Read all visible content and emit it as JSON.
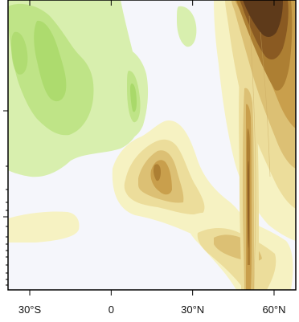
{
  "chart_data": {
    "type": "heatmap",
    "subtype": "filled-contour",
    "title": "",
    "xlabel": "",
    "ylabel": "",
    "x_ticks": [
      {
        "value": -30,
        "label": "30°S"
      },
      {
        "value": 0,
        "label": "0"
      },
      {
        "value": 30,
        "label": "30°N"
      },
      {
        "value": 60,
        "label": "60°N"
      }
    ],
    "xlim": [
      -38,
      68
    ],
    "y_scale": "log",
    "y_tick_labels_shown": false,
    "legend": "none",
    "grid": false,
    "palette": {
      "negative": [
        "#eef8d2",
        "#d8efae",
        "#bfe487",
        "#a9d96a"
      ],
      "neutral": "#f5f6fb",
      "positive": [
        "#f6f2c2",
        "#ecdd9b",
        "#dcc074",
        "#c99f4c",
        "#ad7f33",
        "#8a5a22",
        "#5e3a1a"
      ]
    },
    "color_features": [
      {
        "name": "green region, southern hemisphere upper levels",
        "lat_range": [
          -38,
          -5
        ],
        "sign": "negative",
        "max_level": 3
      },
      {
        "name": "green band near 10°N aloft",
        "lat_range": [
          5,
          15
        ],
        "sign": "negative",
        "max_level": 3
      },
      {
        "name": "green patch near 36°N aloft",
        "lat_range": [
          32,
          40
        ],
        "sign": "negative",
        "max_level": 1
      },
      {
        "name": "brown maximum 45–65°N upper levels",
        "lat_range": [
          45,
          65
        ],
        "sign": "positive",
        "max_level": 7
      },
      {
        "name": "brown maximum near 20°N mid levels",
        "lat_range": [
          10,
          30
        ],
        "sign": "positive",
        "max_level": 5
      },
      {
        "name": "brown streak near 55°N to the lower levels",
        "lat_range": [
          45,
          62
        ],
        "sign": "positive",
        "max_level": 6
      },
      {
        "name": "pale yellow band 35°S–20°S near the bottom",
        "lat_range": [
          -38,
          -20
        ],
        "sign": "positive",
        "max_level": 1
      }
    ]
  }
}
